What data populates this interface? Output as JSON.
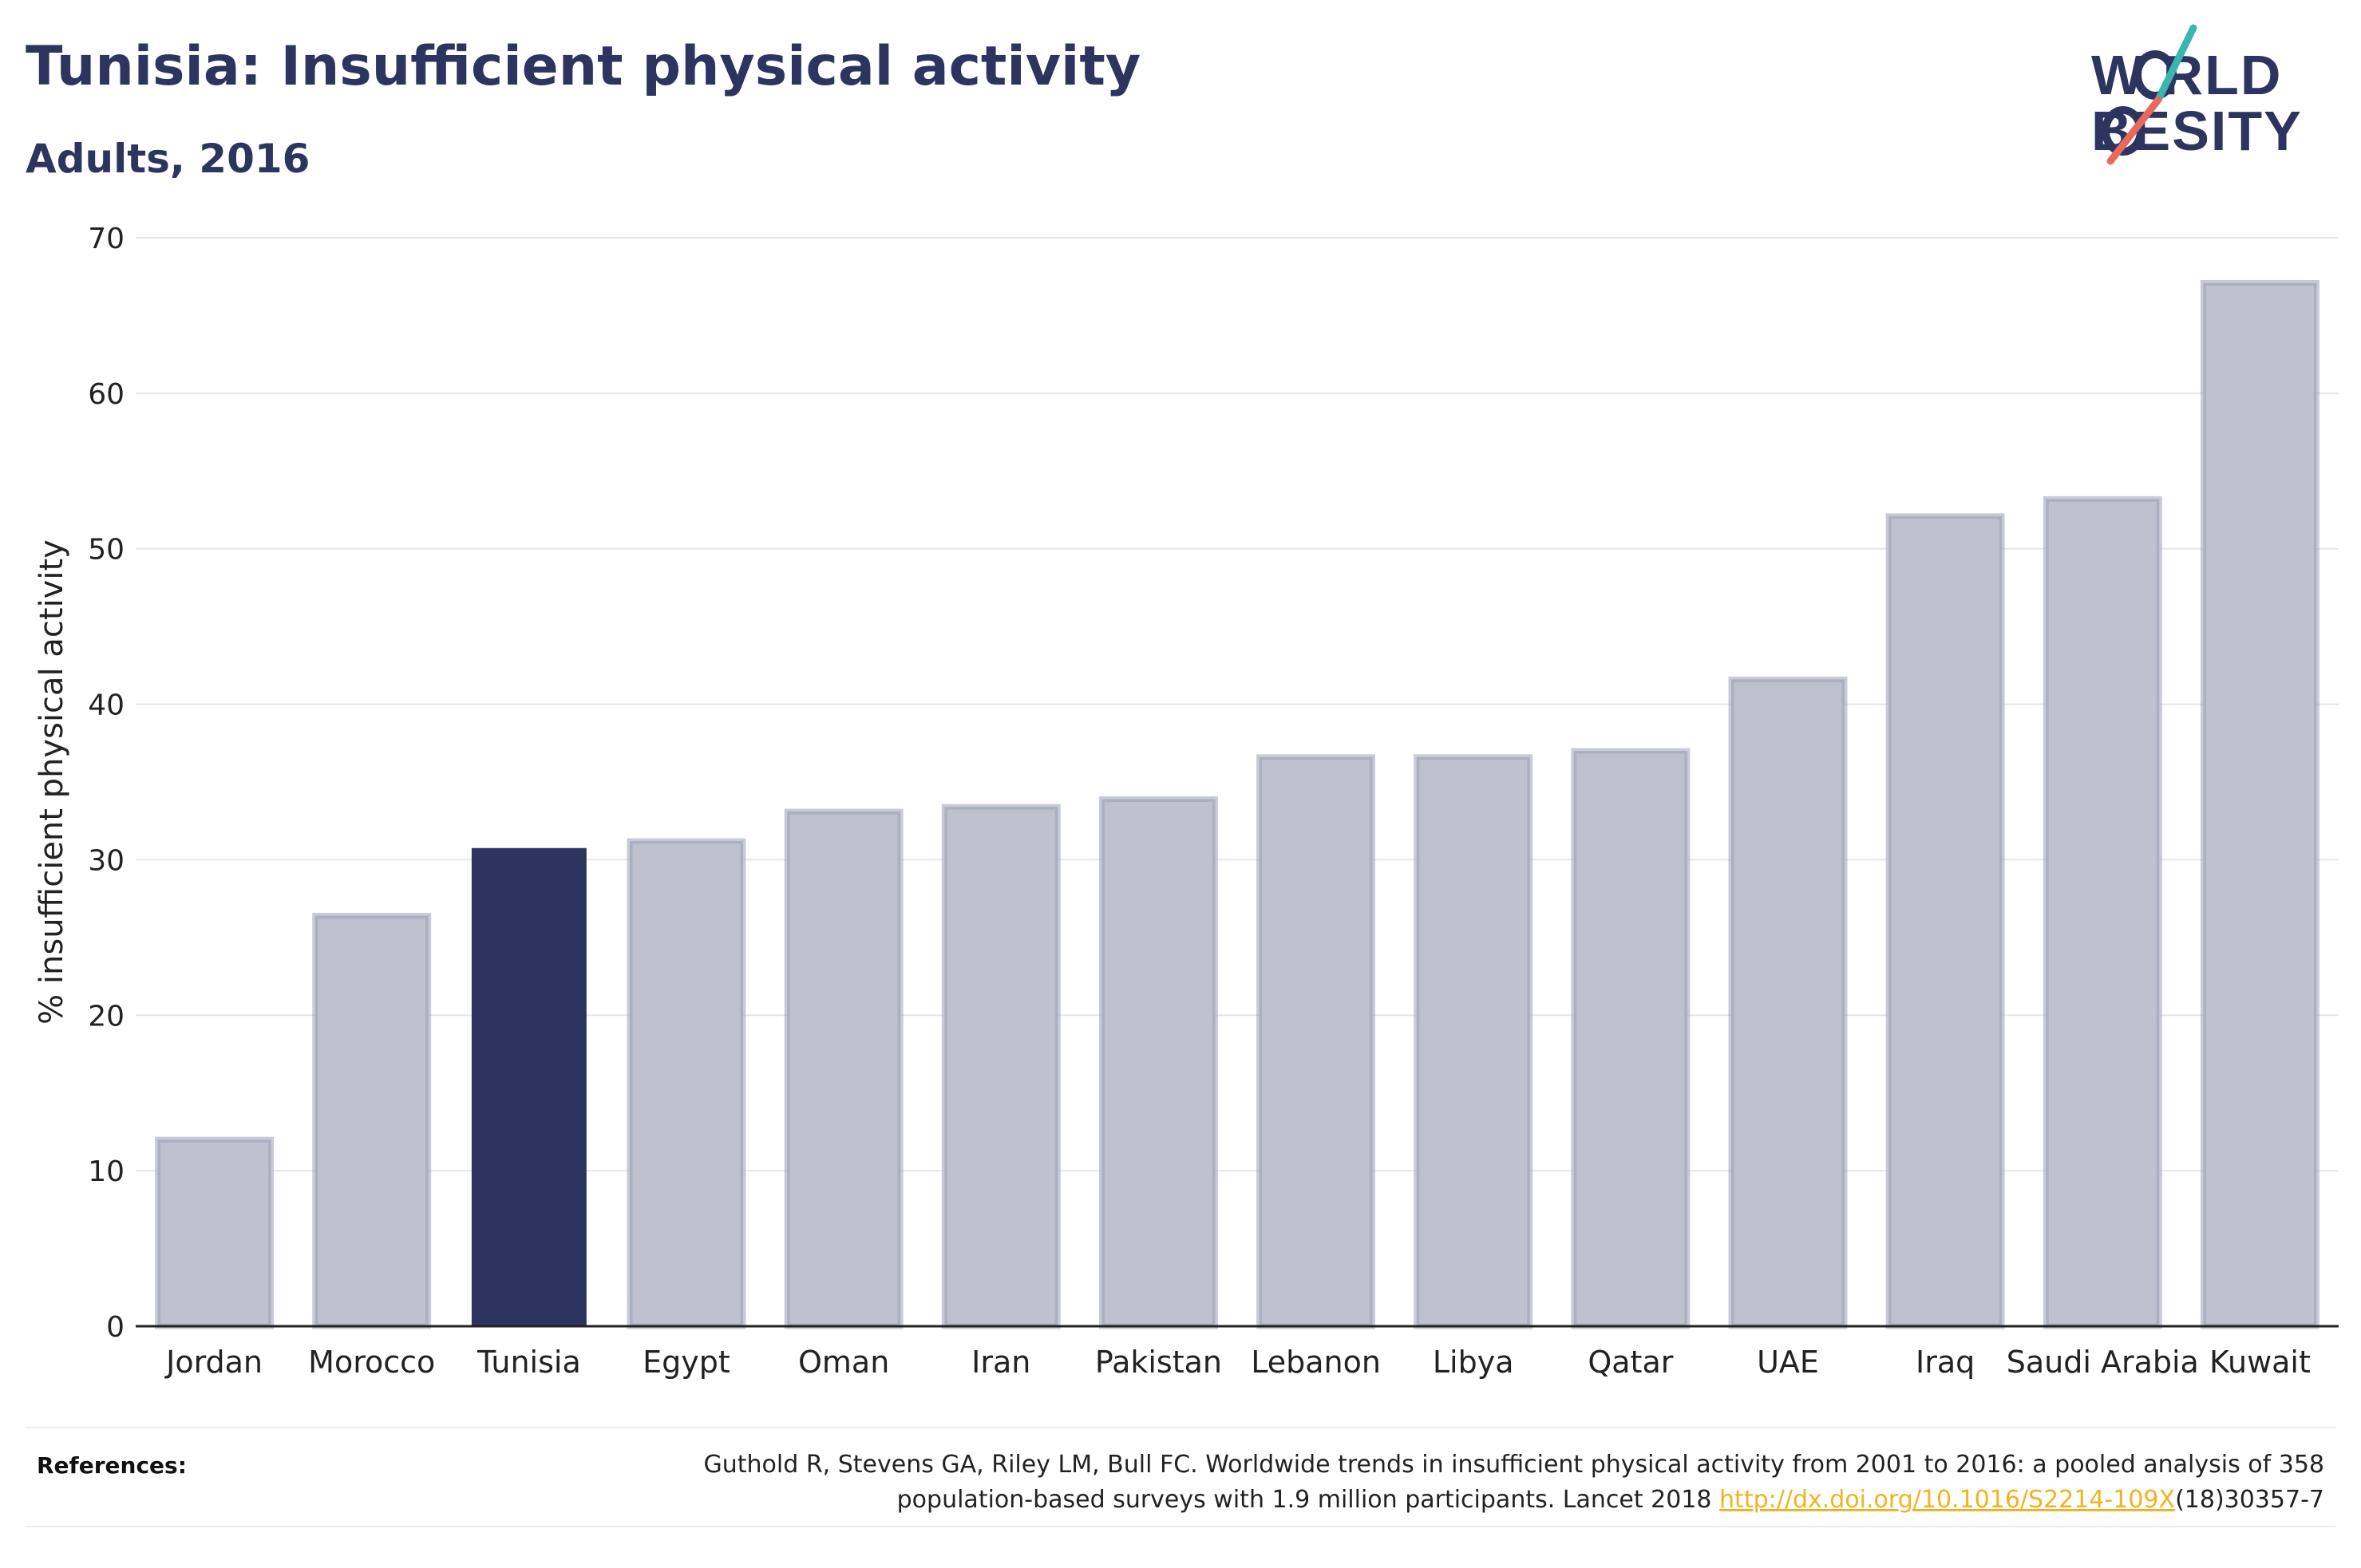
{
  "header": {
    "title": "Tunisia: Insufficient physical activity",
    "subtitle": "Adults, 2016"
  },
  "logo": {
    "line1": "W RLD",
    "line2": "BESITY",
    "slash_colors": [
      "#37b7ae",
      "#e8685c"
    ],
    "text_color": "#2b3560"
  },
  "colors": {
    "highlight": "#2b3560",
    "bar_fill": "#bfc2ce",
    "bar_stroke": "#9aa0b6",
    "grid": "#e6e6e6",
    "link": "#f0b323"
  },
  "chart_data": {
    "type": "bar",
    "categories": [
      "Jordan",
      "Morocco",
      "Tunisia",
      "Egypt",
      "Oman",
      "Iran",
      "Pakistan",
      "Lebanon",
      "Libya",
      "Qatar",
      "UAE",
      "Iraq",
      "Saudi Arabia",
      "Kuwait"
    ],
    "values": [
      12.0,
      26.4,
      30.7,
      31.2,
      33.1,
      33.4,
      33.9,
      36.6,
      36.6,
      37.0,
      41.6,
      52.1,
      53.2,
      67.1
    ],
    "highlight": "Tunisia",
    "title": "Tunisia: Insufficient physical activity",
    "subtitle": "Adults, 2016",
    "xlabel": "",
    "ylabel": "% insufficient physical activity",
    "ylim": [
      0,
      70
    ],
    "yticks": [
      0,
      10,
      20,
      30,
      40,
      50,
      60,
      70
    ],
    "grid": true,
    "legend": "none"
  },
  "references": {
    "label": "References:",
    "text_before_link": "Guthold R, Stevens GA, Riley LM, Bull FC. Worldwide trends in insufficient physical activity from 2001 to 2016: a pooled analysis of 358 population-based surveys with 1.9 million participants. Lancet 2018 ",
    "link": "http://dx.doi.org/10.1016/S2214-109X",
    "text_after_link": "(18)30357-7"
  }
}
